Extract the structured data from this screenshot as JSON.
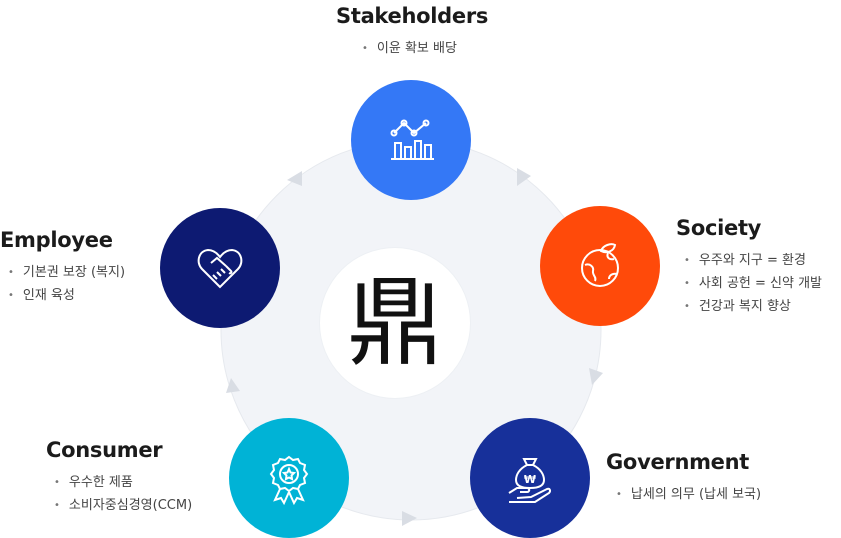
{
  "center_logo": {
    "glyph": "鼎"
  },
  "nodes": {
    "stakeholders": {
      "title": "Stakeholders",
      "items": [
        "이윤 확보 배당"
      ],
      "color": "#3478f6",
      "icon": "growth-chart-icon"
    },
    "society": {
      "title": "Society",
      "items": [
        "우주와 지구 = 환경",
        "사회 공헌 = 신약 개발",
        "건강과 복지 향상"
      ],
      "color": "#ff4a0a",
      "icon": "globe-leaf-icon"
    },
    "government": {
      "title": "Government",
      "items": [
        "납세의 의무 (납세 보국)"
      ],
      "color": "#17309a",
      "icon": "money-bag-hand-icon"
    },
    "consumer": {
      "title": "Consumer",
      "items": [
        "우수한 제품",
        "소비자중심경영(CCM)"
      ],
      "color": "#00b3d6",
      "icon": "award-medal-icon"
    },
    "employee": {
      "title": "Employee",
      "items": [
        "기본권 보장 (복지)",
        "인재 육성"
      ],
      "color": "#0d1a72",
      "icon": "handshake-heart-icon"
    }
  },
  "ring_color": "#f2f4f8",
  "arrow_color": "#d9dde4"
}
